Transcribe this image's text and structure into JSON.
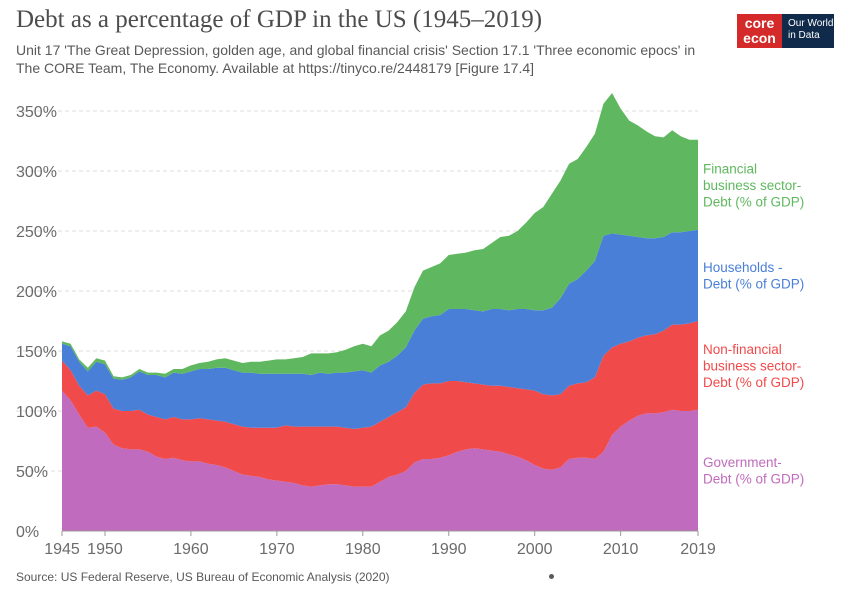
{
  "title": "Debt as a percentage of GDP in the US (1945–2019)",
  "subtitle": "Unit 17 'The Great Depression, golden age, and global financial crisis' Section 17.1 'Three economic epocs' in The CORE Team, The Economy. Available at https://tinyco.re/2448179 [Figure 17.4]",
  "logo": {
    "core_line1": "core",
    "core_line2": "econ",
    "owid_line1": "Our World",
    "owid_line2": "in Data"
  },
  "source": "Source: US Federal Reserve, US Bureau of Economic Analysis (2020)",
  "colors": {
    "government": "#c06bbd",
    "nonfinancial": "#f04a4a",
    "households": "#4a7fd8",
    "financial": "#5fb85f",
    "grid": "#dddddd",
    "axis_text": "#6b6b6b"
  },
  "chart_data": {
    "type": "area",
    "stacked": true,
    "xlim": [
      1945,
      2019
    ],
    "ylim": [
      0,
      350
    ],
    "x_ticks": [
      1945,
      1950,
      1960,
      1970,
      1980,
      1990,
      2000,
      2010,
      2019
    ],
    "y_ticks": [
      0,
      50,
      100,
      150,
      200,
      250,
      300,
      350
    ],
    "y_tick_labels": [
      "0%",
      "50%",
      "100%",
      "150%",
      "200%",
      "250%",
      "300%",
      "350%"
    ],
    "grid": "horizontal dashed",
    "x": [
      1945,
      1946,
      1947,
      1948,
      1949,
      1950,
      1951,
      1952,
      1953,
      1954,
      1955,
      1956,
      1957,
      1958,
      1959,
      1960,
      1961,
      1962,
      1963,
      1964,
      1965,
      1966,
      1967,
      1968,
      1969,
      1970,
      1971,
      1972,
      1973,
      1974,
      1975,
      1976,
      1977,
      1978,
      1979,
      1980,
      1981,
      1982,
      1983,
      1984,
      1985,
      1986,
      1987,
      1988,
      1989,
      1990,
      1991,
      1992,
      1993,
      1994,
      1995,
      1996,
      1997,
      1998,
      1999,
      2000,
      2001,
      2002,
      2003,
      2004,
      2005,
      2006,
      2007,
      2008,
      2009,
      2010,
      2011,
      2012,
      2013,
      2014,
      2015,
      2016,
      2017,
      2018,
      2019
    ],
    "series": [
      {
        "name": "Government-Debt (% of GDP)",
        "key": "government",
        "values": [
          117,
          109,
          97,
          86,
          87,
          82,
          72,
          69,
          68,
          68,
          66,
          62,
          60,
          61,
          59,
          58,
          58,
          56,
          55,
          53,
          50,
          47,
          46,
          45,
          43,
          42,
          41,
          40,
          38,
          37,
          38,
          39,
          39,
          38,
          37,
          37,
          37,
          41,
          45,
          47,
          50,
          57,
          60,
          60,
          61,
          63,
          66,
          68,
          69,
          68,
          67,
          66,
          64,
          62,
          59,
          55,
          52,
          51,
          53,
          60,
          61,
          61,
          60,
          66,
          80,
          87,
          92,
          96,
          98,
          98,
          99,
          101,
          100,
          100,
          101
        ]
      },
      {
        "name": "Non-financial business sector-Debt (% of GDP)",
        "key": "nonfinancial",
        "values": [
          25,
          25,
          24,
          27,
          30,
          32,
          30,
          31,
          32,
          33,
          31,
          33,
          33,
          34,
          34,
          35,
          36,
          37,
          37,
          38,
          39,
          40,
          40,
          41,
          43,
          44,
          47,
          47,
          49,
          50,
          49,
          48,
          48,
          48,
          48,
          49,
          50,
          50,
          50,
          52,
          53,
          58,
          62,
          63,
          62,
          62,
          59,
          56,
          54,
          54,
          54,
          55,
          56,
          57,
          59,
          62,
          62,
          62,
          61,
          61,
          62,
          63,
          68,
          80,
          73,
          69,
          66,
          65,
          65,
          66,
          68,
          71,
          72,
          73,
          74
        ]
      },
      {
        "name": "Households - Debt (% of GDP)",
        "key": "households",
        "values": [
          14,
          20,
          20,
          20,
          24,
          25,
          25,
          26,
          28,
          32,
          33,
          35,
          35,
          37,
          38,
          40,
          41,
          42,
          44,
          45,
          45,
          45,
          46,
          45,
          45,
          45,
          43,
          44,
          44,
          43,
          45,
          44,
          45,
          46,
          48,
          48,
          45,
          47,
          46,
          47,
          50,
          52,
          55,
          56,
          57,
          60,
          60,
          61,
          61,
          61,
          64,
          64,
          64,
          66,
          67,
          67,
          70,
          73,
          80,
          85,
          87,
          93,
          97,
          100,
          95,
          91,
          88,
          84,
          81,
          80,
          78,
          77,
          77,
          77,
          76
        ]
      },
      {
        "name": "Financial business sector-Debt (% of GDP)",
        "key": "financial",
        "values": [
          2,
          2,
          2,
          3,
          3,
          3,
          2,
          2,
          2,
          2,
          2,
          2,
          3,
          3,
          4,
          5,
          5,
          6,
          7,
          8,
          8,
          8,
          9,
          10,
          11,
          12,
          12,
          13,
          14,
          18,
          16,
          17,
          17,
          19,
          21,
          22,
          22,
          25,
          26,
          28,
          30,
          36,
          40,
          41,
          43,
          45,
          46,
          47,
          50,
          52,
          55,
          60,
          62,
          65,
          72,
          81,
          86,
          95,
          98,
          100,
          100,
          103,
          106,
          110,
          117,
          105,
          96,
          93,
          89,
          85,
          83,
          85,
          80,
          76,
          75
        ]
      }
    ],
    "labels": [
      {
        "key": "financial",
        "lines": [
          "Financial",
          "business sector-",
          "Debt (% of GDP)"
        ]
      },
      {
        "key": "households",
        "lines": [
          "Households -",
          "Debt (% of GDP)"
        ]
      },
      {
        "key": "nonfinancial",
        "lines": [
          "Non-financial",
          "business sector-",
          "Debt (% of GDP)"
        ]
      },
      {
        "key": "government",
        "lines": [
          "Government-",
          "Debt (% of GDP)"
        ]
      }
    ]
  }
}
